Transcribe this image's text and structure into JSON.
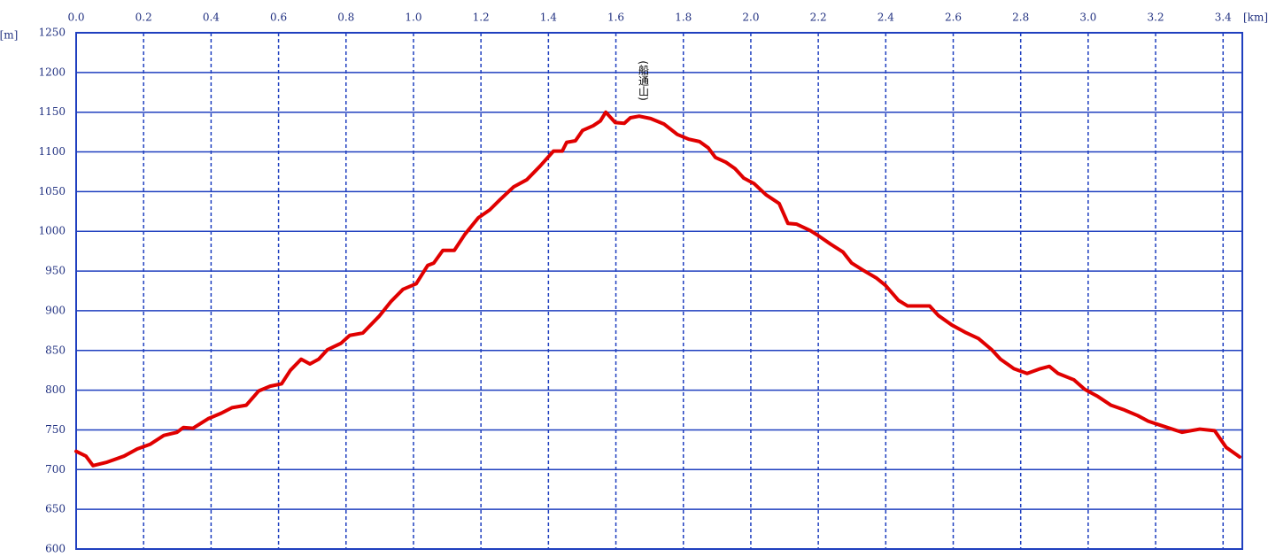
{
  "chart_data": {
    "type": "line",
    "x_label": "[km]",
    "y_label": "[m]",
    "x": [
      0,
      0.029,
      0.05,
      0.089,
      0.142,
      0.181,
      0.22,
      0.26,
      0.299,
      0.318,
      0.346,
      0.391,
      0.43,
      0.462,
      0.504,
      0.541,
      0.575,
      0.609,
      0.635,
      0.667,
      0.693,
      0.719,
      0.745,
      0.785,
      0.811,
      0.85,
      0.898,
      0.934,
      0.969,
      1.008,
      1.042,
      1.06,
      1.087,
      1.121,
      1.152,
      1.192,
      1.226,
      1.257,
      1.297,
      1.336,
      1.375,
      1.415,
      1.441,
      1.454,
      1.48,
      1.501,
      1.533,
      1.554,
      1.57,
      1.598,
      1.625,
      1.643,
      1.669,
      1.703,
      1.743,
      1.782,
      1.816,
      1.848,
      1.874,
      1.895,
      1.926,
      1.953,
      1.979,
      2.01,
      2.045,
      2.084,
      2.11,
      2.136,
      2.176,
      2.202,
      2.236,
      2.273,
      2.299,
      2.333,
      2.373,
      2.399,
      2.438,
      2.465,
      2.53,
      2.556,
      2.596,
      2.635,
      2.675,
      2.714,
      2.74,
      2.78,
      2.819,
      2.858,
      2.885,
      2.911,
      2.958,
      2.99,
      3.029,
      3.068,
      3.108,
      3.147,
      3.178,
      3.213,
      3.278,
      3.331,
      3.375,
      3.409,
      3.449
    ],
    "series": [
      {
        "color": "#e00000",
        "values": [
          723,
          717,
          705,
          709,
          717,
          726,
          732,
          743,
          747,
          753,
          752,
          764,
          771,
          778,
          781,
          799,
          805,
          808,
          825,
          839,
          833,
          839,
          851,
          859,
          869,
          872,
          893,
          912,
          927,
          934,
          957,
          960,
          976,
          976,
          996,
          1017,
          1027,
          1040,
          1056,
          1065,
          1082,
          1101,
          1101,
          1112,
          1114,
          1127,
          1133,
          1139,
          1150,
          1137,
          1136,
          1143,
          1145,
          1142,
          1135,
          1122,
          1116,
          1113,
          1105,
          1093,
          1087,
          1079,
          1067,
          1060,
          1046,
          1035,
          1010,
          1009,
          1001,
          994,
          984,
          974,
          960,
          951,
          941,
          932,
          913,
          906,
          906,
          894,
          882,
          873,
          865,
          851,
          839,
          827,
          821,
          827,
          830,
          821,
          813,
          801,
          792,
          781,
          775,
          768,
          761,
          756,
          747,
          751,
          749,
          728,
          716
        ]
      }
    ],
    "annotations": [
      {
        "text": "(船通山)",
        "x": 1.68,
        "y": 1215
      }
    ],
    "xlim": [
      0,
      3.457
    ],
    "ylim": [
      600,
      1250
    ],
    "xticks": [
      {
        "value": 0,
        "label": "0.0"
      },
      0.2,
      0.4,
      0.6,
      0.8,
      {
        "value": 1,
        "label": "1.0"
      },
      1.2,
      1.4,
      1.6,
      1.8,
      {
        "value": 2,
        "label": "2.0"
      },
      2.2,
      2.4,
      2.6,
      2.8,
      {
        "value": 3,
        "label": "3.0"
      },
      3.2,
      3.4
    ],
    "yticks": [
      600,
      650,
      700,
      750,
      800,
      850,
      900,
      950,
      1000,
      1050,
      1100,
      1150,
      1200,
      1250
    ],
    "grid": true
  }
}
